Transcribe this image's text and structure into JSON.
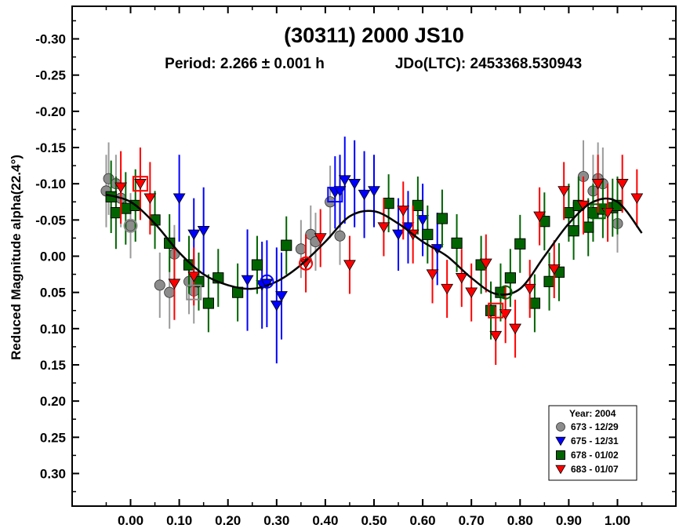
{
  "chart_data": {
    "type": "scatter",
    "title": "(30311) 2000 JS10",
    "subtitle_period": "Period: 2.266 ± 0.001 h",
    "subtitle_epoch": "JDo(LTC): 2453368.530943",
    "xlabel": "",
    "ylabel": "Reduced Magnitude alpha(22.4°)",
    "xlim": [
      -0.12,
      1.12
    ],
    "ylim": [
      0.345,
      -0.345
    ],
    "x_ticks": [
      "0.00",
      "0.10",
      "0.20",
      "0.30",
      "0.40",
      "0.50",
      "0.60",
      "0.70",
      "0.80",
      "0.90",
      "1.00"
    ],
    "y_ticks": [
      "-0.30",
      "-0.25",
      "-0.20",
      "-0.15",
      "-0.10",
      "-0.05",
      "0.00",
      "0.05",
      "0.10",
      "0.15",
      "0.20",
      "0.25",
      "0.30"
    ],
    "legend_title": "Year: 2004",
    "legend_position": "bottom-right",
    "fit_curve": {
      "x": [
        -0.05,
        0.0,
        0.05,
        0.1,
        0.15,
        0.2,
        0.25,
        0.3,
        0.35,
        0.4,
        0.45,
        0.5,
        0.55,
        0.6,
        0.65,
        0.7,
        0.75,
        0.8,
        0.85,
        0.9,
        0.95,
        1.0,
        1.05
      ],
      "y": [
        -0.085,
        -0.075,
        -0.045,
        -0.005,
        0.025,
        0.04,
        0.045,
        0.035,
        0.012,
        -0.02,
        -0.055,
        -0.062,
        -0.045,
        -0.02,
        0.0,
        0.03,
        0.052,
        0.045,
        0.0,
        -0.045,
        -0.075,
        -0.075,
        -0.032
      ]
    },
    "series": [
      {
        "name": "673 - 12/29",
        "marker": "circle",
        "color": "#8c8c8c",
        "x": [
          -0.05,
          -0.045,
          -0.03,
          -0.02,
          0.0,
          0.06,
          0.08,
          0.09,
          0.12,
          0.13,
          0.35,
          0.37,
          0.38,
          0.41,
          0.43,
          0.93,
          0.95,
          0.96,
          0.97,
          1.0
        ],
        "y": [
          -0.09,
          -0.107,
          -0.1,
          -0.08,
          -0.042,
          0.04,
          0.05,
          -0.003,
          0.035,
          0.048,
          -0.01,
          -0.03,
          -0.02,
          -0.075,
          -0.028,
          -0.11,
          -0.09,
          -0.107,
          -0.1,
          -0.045
        ],
        "err": [
          0.05,
          0.05,
          0.04,
          0.04,
          0.045,
          0.045,
          0.05,
          0.04,
          0.045,
          0.045,
          0.04,
          0.04,
          0.04,
          0.05,
          0.04,
          0.05,
          0.05,
          0.05,
          0.05,
          0.04
        ]
      },
      {
        "name": "675 - 12/31",
        "marker": "triangle-down",
        "color": "#0000ff",
        "x": [
          0.1,
          0.13,
          0.15,
          0.24,
          0.27,
          0.28,
          0.3,
          0.31,
          0.42,
          0.43,
          0.44,
          0.46,
          0.48,
          0.5,
          0.55,
          0.57,
          0.6,
          0.63
        ],
        "y": [
          -0.08,
          -0.03,
          -0.035,
          0.033,
          0.04,
          0.038,
          0.068,
          0.055,
          -0.088,
          -0.09,
          -0.105,
          -0.1,
          -0.085,
          -0.09,
          -0.03,
          -0.04,
          -0.05,
          -0.01
        ],
        "err": [
          0.06,
          0.05,
          0.06,
          0.07,
          0.06,
          0.06,
          0.08,
          0.06,
          0.05,
          0.05,
          0.06,
          0.06,
          0.06,
          0.05,
          0.05,
          0.05,
          0.05,
          0.05
        ]
      },
      {
        "name": "678 - 01/02",
        "marker": "square",
        "color": "#006400",
        "x": [
          -0.04,
          -0.03,
          -0.01,
          0.01,
          0.05,
          0.08,
          0.12,
          0.14,
          0.16,
          0.18,
          0.22,
          0.26,
          0.32,
          0.53,
          0.59,
          0.61,
          0.64,
          0.67,
          0.72,
          0.74,
          0.76,
          0.78,
          0.8,
          0.83,
          0.85,
          0.86,
          0.88,
          0.9,
          0.91,
          0.92,
          0.94,
          0.95,
          0.97,
          0.99,
          1.0
        ],
        "y": [
          -0.082,
          -0.06,
          -0.066,
          -0.07,
          -0.05,
          -0.018,
          0.012,
          0.035,
          0.065,
          0.03,
          0.05,
          0.012,
          -0.015,
          -0.073,
          -0.07,
          -0.03,
          -0.052,
          -0.018,
          0.012,
          0.075,
          0.05,
          0.03,
          -0.017,
          0.065,
          -0.048,
          0.035,
          0.022,
          -0.06,
          -0.035,
          -0.07,
          -0.04,
          -0.06,
          -0.065,
          -0.067,
          -0.07
        ],
        "err": [
          0.05,
          0.05,
          0.05,
          0.05,
          0.04,
          0.04,
          0.04,
          0.04,
          0.04,
          0.04,
          0.04,
          0.04,
          0.04,
          0.04,
          0.04,
          0.04,
          0.04,
          0.04,
          0.04,
          0.04,
          0.04,
          0.04,
          0.04,
          0.04,
          0.04,
          0.04,
          0.04,
          0.04,
          0.04,
          0.04,
          0.04,
          0.04,
          0.04,
          0.04,
          0.04
        ]
      },
      {
        "name": "683 - 01/07",
        "marker": "triangle-down",
        "color": "#ff0000",
        "x": [
          -0.02,
          0.02,
          0.04,
          0.09,
          0.13,
          0.36,
          0.39,
          0.45,
          0.52,
          0.56,
          0.58,
          0.62,
          0.65,
          0.68,
          0.7,
          0.73,
          0.75,
          0.77,
          0.79,
          0.82,
          0.84,
          0.87,
          0.89,
          0.93,
          0.96,
          0.98,
          1.01,
          1.04
        ],
        "y": [
          -0.095,
          -0.1,
          -0.08,
          0.038,
          0.028,
          0.01,
          -0.025,
          0.012,
          -0.04,
          -0.063,
          -0.03,
          0.025,
          0.045,
          0.03,
          0.05,
          0.01,
          0.11,
          0.08,
          0.1,
          0.045,
          -0.055,
          0.018,
          -0.09,
          -0.07,
          -0.1,
          -0.06,
          -0.1,
          -0.08
        ],
        "err": [
          0.05,
          0.05,
          0.05,
          0.05,
          0.04,
          0.04,
          0.04,
          0.04,
          0.04,
          0.04,
          0.04,
          0.04,
          0.04,
          0.04,
          0.04,
          0.04,
          0.04,
          0.04,
          0.04,
          0.04,
          0.04,
          0.04,
          0.04,
          0.04,
          0.04,
          0.04,
          0.04,
          0.04
        ]
      }
    ],
    "highlighted_points": [
      {
        "series": "673 - 12/29",
        "x": 0.0,
        "y": -0.042,
        "marker": "circle-open"
      },
      {
        "series": "683 - 01/07",
        "x": 0.02,
        "y": -0.1,
        "marker": "square-open"
      },
      {
        "series": "673 - 12/29",
        "x": 0.13,
        "y": 0.05,
        "marker": "square-open"
      },
      {
        "series": "675 - 12/31",
        "x": 0.28,
        "y": 0.035,
        "marker": "circle-open"
      },
      {
        "series": "683 - 01/07",
        "x": 0.36,
        "y": 0.01,
        "marker": "circle-open"
      },
      {
        "series": "675 - 12/31",
        "x": 0.42,
        "y": -0.085,
        "marker": "square-open"
      },
      {
        "series": "683 - 01/07",
        "x": 0.75,
        "y": 0.075,
        "marker": "square-open"
      },
      {
        "series": "678 - 01/02",
        "x": 0.77,
        "y": 0.05,
        "marker": "circle-open"
      },
      {
        "series": "678 - 01/02",
        "x": 0.96,
        "y": -0.062,
        "marker": "square-open"
      }
    ]
  }
}
